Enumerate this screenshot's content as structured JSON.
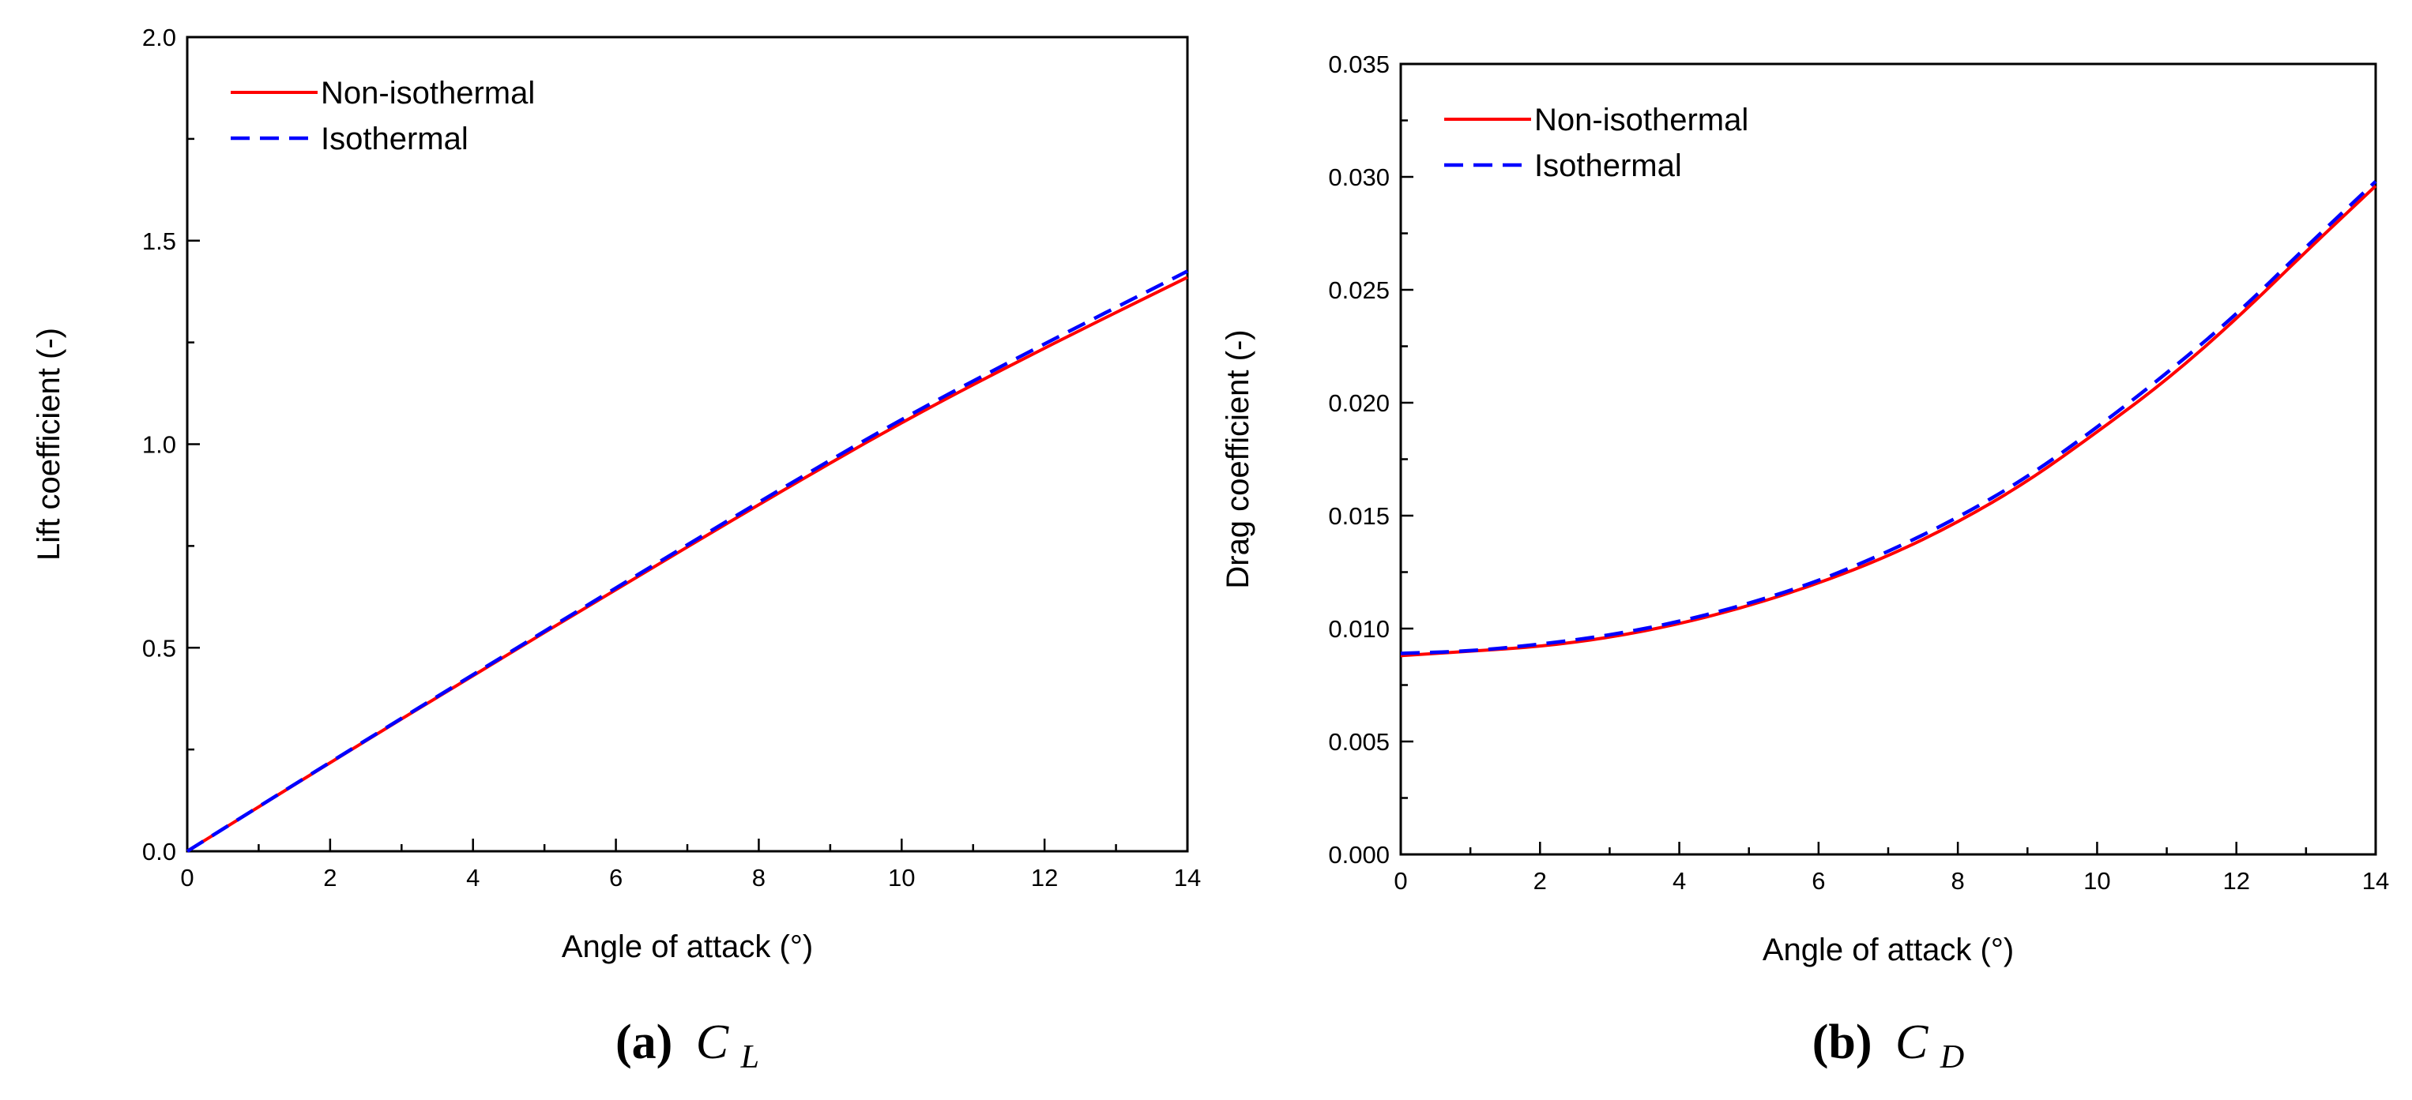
{
  "colors": {
    "non_isothermal": "#ff0000",
    "isothermal": "#0000ff",
    "axis": "#000000"
  },
  "chart_data": [
    {
      "type": "line",
      "title": "",
      "xlabel": "Angle of attack (°)",
      "ylabel": "Lift coefficient (-)",
      "xlim": [
        0,
        14
      ],
      "ylim": [
        0,
        2.0
      ],
      "xticks": [
        0,
        2,
        4,
        6,
        8,
        10,
        12,
        14
      ],
      "xtick_labels": [
        "0",
        "2",
        "4",
        "6",
        "8",
        "10",
        "12",
        "14"
      ],
      "yticks": [
        0,
        0.5,
        1.0,
        1.5,
        2.0
      ],
      "ytick_labels": [
        "0.0",
        "0.5",
        "1.0",
        "1.5",
        "2.0"
      ],
      "grid": false,
      "legend_position": "top-left",
      "caption_label": "(a)",
      "caption_symbol": "C",
      "caption_subscript": "L",
      "series": [
        {
          "name": "Non-isothermal",
          "style": "solid",
          "color": "#ff0000",
          "x": [
            0,
            2,
            4,
            6,
            8,
            10,
            12,
            14
          ],
          "y": [
            0,
            0.218,
            0.432,
            0.643,
            0.852,
            1.055,
            1.237,
            1.41
          ]
        },
        {
          "name": "Isothermal",
          "style": "dashed",
          "color": "#0000ff",
          "x": [
            0,
            2,
            4,
            6,
            8,
            10,
            12,
            14
          ],
          "y": [
            0,
            0.219,
            0.434,
            0.647,
            0.858,
            1.063,
            1.247,
            1.425
          ]
        }
      ]
    },
    {
      "type": "line",
      "title": "",
      "xlabel": "Angle of attack (°)",
      "ylabel": "Drag coefficient (-)",
      "xlim": [
        0,
        14
      ],
      "ylim": [
        0,
        0.035
      ],
      "xticks": [
        0,
        2,
        4,
        6,
        8,
        10,
        12,
        14
      ],
      "xtick_labels": [
        "0",
        "2",
        "4",
        "6",
        "8",
        "10",
        "12",
        "14"
      ],
      "yticks": [
        0,
        0.005,
        0.01,
        0.015,
        0.02,
        0.025,
        0.03,
        0.035
      ],
      "ytick_labels": [
        "0.000",
        "0.005",
        "0.010",
        "0.015",
        "0.020",
        "0.025",
        "0.030",
        "0.035"
      ],
      "grid": false,
      "legend_position": "top-left",
      "caption_label": "(b)",
      "caption_symbol": "C",
      "caption_subscript": "D",
      "series": [
        {
          "name": "Non-isothermal",
          "style": "solid",
          "color": "#ff0000",
          "x": [
            0,
            1,
            2,
            3,
            4,
            5,
            6,
            7,
            8,
            9,
            10,
            11,
            12,
            13,
            14
          ],
          "y": [
            0.0088,
            0.009,
            0.0092,
            0.0096,
            0.0102,
            0.011,
            0.012,
            0.0132,
            0.0147,
            0.0165,
            0.0187,
            0.021,
            0.0237,
            0.0267,
            0.0296
          ]
        },
        {
          "name": "Isothermal",
          "style": "dashed",
          "color": "#0000ff",
          "x": [
            0,
            1,
            2,
            3,
            4,
            5,
            6,
            7,
            8,
            9,
            10,
            11,
            12,
            13,
            14
          ],
          "y": [
            0.0089,
            0.009,
            0.0093,
            0.0097,
            0.0103,
            0.0111,
            0.0121,
            0.0134,
            0.0149,
            0.0167,
            0.0189,
            0.0213,
            0.0239,
            0.0269,
            0.0298
          ]
        }
      ]
    }
  ]
}
